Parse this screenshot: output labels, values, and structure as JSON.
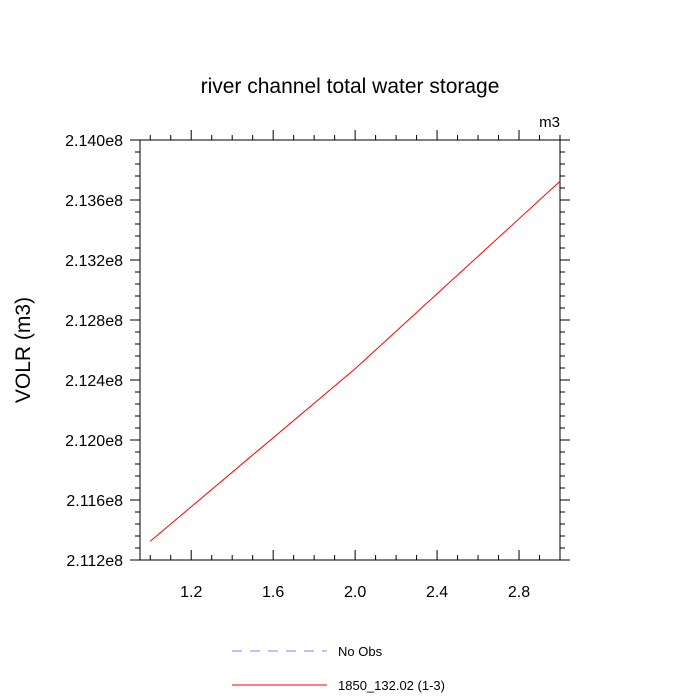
{
  "chart_data": {
    "type": "line",
    "title": "river channel total water storage",
    "units_label": "m3",
    "ylabel": "VOLR  (m3)",
    "xlabel": "",
    "xlim": [
      0.95,
      3.0
    ],
    "ylim": [
      211200000.0,
      214000000.0
    ],
    "x_ticks": [
      1.2,
      1.6,
      2.0,
      2.4,
      2.8
    ],
    "x_tick_labels": [
      "1.2",
      "1.6",
      "2.0",
      "2.4",
      "2.8"
    ],
    "y_ticks": [
      211200000.0,
      211600000.0,
      212000000.0,
      212400000.0,
      212800000.0,
      213200000.0,
      213600000.0,
      214000000.0
    ],
    "y_tick_labels": [
      "2.112e8",
      "2.116e8",
      "2.120e8",
      "2.124e8",
      "2.128e8",
      "2.132e8",
      "2.136e8",
      "2.140e8"
    ],
    "series": [
      {
        "name": "1850_132.02 (1-3)",
        "color": "#ff0000",
        "dash": "solid",
        "x": [
          1.0,
          2.0,
          3.0
        ],
        "y": [
          211325000.0,
          212475000.0,
          213725000.0
        ]
      }
    ],
    "legend": [
      {
        "label": "No Obs",
        "color": "#8080ff",
        "dash": "dashed"
      },
      {
        "label": "1850_132.02 (1-3)",
        "color": "#ff0000",
        "dash": "solid"
      }
    ],
    "legend_position": "bottom-center",
    "grid": false
  }
}
